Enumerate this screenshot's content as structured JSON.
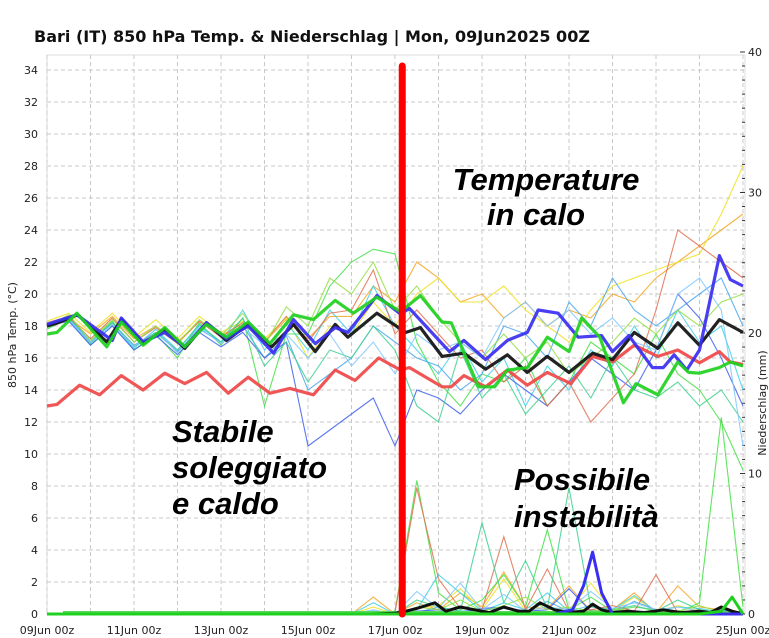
{
  "chart_data": {
    "type": "line",
    "title": "Bari  (IT)  850 hPa Temp. & Niederschlag | Mon, 09Jun2025 00Z",
    "ylabel": "850 hPa Temp. (°C)",
    "y2label": "Niederschlag (mm)",
    "x_unit": "hours since 09Jun 00z",
    "xlim": [
      0,
      384
    ],
    "ylim": [
      0,
      34
    ],
    "y2lim": [
      0,
      40
    ],
    "x_ticks": [
      {
        "t": 0,
        "label": "09Jun 00z"
      },
      {
        "t": 48,
        "label": "11Jun 00z"
      },
      {
        "t": 96,
        "label": "13Jun 00z"
      },
      {
        "t": 144,
        "label": "15Jun 00z"
      },
      {
        "t": 192,
        "label": "17Jun 00z"
      },
      {
        "t": 240,
        "label": "19Jun 00z"
      },
      {
        "t": 288,
        "label": "21Jun 00z"
      },
      {
        "t": 336,
        "label": "23Jun 00z"
      },
      {
        "t": 384,
        "label": "25Jun 00z"
      }
    ],
    "y_ticks": [
      "0",
      "2",
      "4",
      "6",
      "8",
      "10",
      "12",
      "14",
      "16",
      "18",
      "20",
      "22",
      "24",
      "26",
      "28",
      "30",
      "32",
      "34"
    ],
    "y2_ticks": [
      "0",
      "10",
      "20",
      "30",
      "40"
    ],
    "grid": true,
    "member_step_hours": 12,
    "members": [
      {
        "color": "#f5a623",
        "temp": [
          18,
          18.5,
          17.5,
          18.6,
          17.2,
          18,
          17,
          18.3,
          17.4,
          18.2,
          17,
          18.4,
          17.2,
          18.6,
          18.6,
          20.5,
          19.5,
          22,
          21,
          19.5,
          20,
          18.5,
          19.5,
          18,
          19,
          18.5,
          20,
          19.5,
          21,
          22,
          23,
          24,
          25
        ],
        "precip": [
          0,
          0,
          0,
          0,
          0,
          0,
          0,
          0,
          0,
          0,
          0,
          0,
          0,
          0,
          0,
          1.2,
          0,
          0.8,
          0.3,
          1.5,
          0.5,
          3,
          0.5,
          0.4,
          2,
          0.2,
          0.3,
          1.5,
          0.1,
          2,
          0.5,
          0.3,
          0
        ]
      },
      {
        "color": "#f0e020",
        "temp": [
          18.3,
          18.8,
          17.6,
          18.8,
          17.3,
          18.4,
          17.2,
          18.6,
          17.6,
          18.3,
          17.2,
          18.5,
          16,
          18,
          17.5,
          19.5,
          18,
          20,
          21,
          19.5,
          19.5,
          20.5,
          19,
          18,
          17,
          19,
          20.5,
          21,
          21.5,
          22,
          22.5,
          25,
          28
        ],
        "precip": [
          0,
          0,
          0,
          0,
          0,
          0,
          0,
          0,
          0,
          0,
          0,
          0,
          0,
          0,
          0,
          0.5,
          0,
          0.4,
          0.6,
          1.8,
          0.3,
          2.5,
          0.2,
          0.5,
          0.3,
          2.2,
          0.2,
          1.2,
          0.1,
          0.6,
          0.2,
          0.1,
          0
        ]
      },
      {
        "color": "#44e044",
        "temp": [
          17.8,
          18.5,
          17,
          18.3,
          16.5,
          17.5,
          16,
          18.2,
          16.8,
          18.5,
          13,
          17.5,
          17.5,
          20.5,
          22,
          22.8,
          22.5,
          17,
          14.5,
          13,
          15,
          14.5,
          16,
          13,
          14.5,
          17,
          16,
          15,
          17.5,
          15,
          14,
          12,
          9
        ],
        "precip": [
          0,
          0,
          0,
          0,
          0,
          0,
          0,
          0,
          0,
          0,
          0,
          0,
          0,
          0,
          0,
          0,
          0.2,
          9.5,
          1.5,
          0.3,
          1,
          2.8,
          0.5,
          6,
          0.3,
          1.2,
          0.2,
          0.5,
          0.3,
          0.1,
          0.8,
          14,
          0.5
        ]
      },
      {
        "color": "#40d0e8",
        "temp": [
          18,
          18.4,
          16.8,
          18,
          16.6,
          17.8,
          16.5,
          18,
          17,
          19,
          16.5,
          18.2,
          16.5,
          19,
          17.5,
          20.5,
          18,
          16.5,
          15,
          17,
          14.5,
          16,
          13,
          15.5,
          14,
          16.5,
          15.5,
          18,
          16,
          19,
          17,
          18,
          14
        ],
        "precip": [
          0,
          0,
          0,
          0,
          0,
          0,
          0,
          0,
          0,
          0,
          0,
          0,
          0,
          0,
          0,
          0.8,
          0,
          0.3,
          2.8,
          1.5,
          0.2,
          0.8,
          0.3,
          1.5,
          0.2,
          0.6,
          0.3,
          1.3,
          0.2,
          0.5,
          0.4,
          0.1,
          0
        ]
      },
      {
        "color": "#4aa8f0",
        "temp": [
          18.1,
          18.6,
          17,
          18.2,
          16.8,
          17.6,
          16.4,
          17.8,
          17,
          18,
          16,
          17.4,
          14,
          15,
          16,
          18,
          17,
          16,
          15.5,
          14,
          15,
          18,
          17.5,
          16,
          19.5,
          18,
          21,
          19,
          18,
          19,
          20,
          21,
          18
        ],
        "precip": [
          0,
          0,
          0,
          0,
          0,
          0,
          0,
          0,
          0,
          0,
          0,
          0,
          0,
          0,
          0,
          0.2,
          0,
          0.1,
          0.5,
          0.2,
          0.3,
          0.4,
          0.1,
          0.9,
          0.2,
          0.3,
          0.1,
          0.9,
          0.3,
          0.2,
          0.1,
          0.3,
          0
        ]
      },
      {
        "color": "#4060f0",
        "temp": [
          18,
          18.3,
          16.8,
          18,
          16.5,
          17.4,
          16.2,
          17.6,
          16.7,
          17.6,
          16,
          17,
          10.5,
          11.5,
          12.5,
          13.5,
          10.5,
          14,
          13.5,
          12.5,
          14,
          15,
          14,
          13,
          14.5,
          16,
          15,
          14,
          16.5,
          20,
          18.5,
          16,
          13
        ],
        "precip": [
          0,
          0,
          0,
          0,
          0,
          0,
          0,
          0,
          0,
          0,
          0,
          0,
          0,
          0,
          0,
          0,
          0,
          0.2,
          0.3,
          0.1,
          0.4,
          0.5,
          0.2,
          0.3,
          1.8,
          0.2,
          0.1,
          0,
          0.1,
          0,
          0.2,
          0.1,
          0
        ]
      },
      {
        "color": "#e07050",
        "temp": [
          18.2,
          18.6,
          17.2,
          18.5,
          17,
          17.9,
          16.9,
          18.3,
          17.3,
          18.2,
          17,
          18.6,
          17,
          18.8,
          19,
          21.5,
          17.5,
          19,
          17.5,
          16,
          16.5,
          14.5,
          15.5,
          13,
          14.5,
          12,
          13.5,
          15,
          19,
          24,
          23,
          22,
          21
        ],
        "precip": [
          0,
          0,
          0,
          0,
          0,
          0,
          0,
          0,
          0,
          0,
          0,
          0,
          0,
          0,
          0,
          0,
          0.1,
          9,
          2.5,
          0.4,
          0.3,
          5.5,
          0.3,
          3.2,
          0.2,
          0.3,
          0.6,
          0.2,
          2.8,
          0.1,
          0.3,
          0,
          0
        ]
      },
      {
        "color": "#40d090",
        "temp": [
          17.9,
          18.5,
          16.9,
          18.2,
          16.7,
          17.6,
          16.5,
          18.1,
          17,
          18.5,
          15.5,
          17,
          14.5,
          16.5,
          16,
          18,
          16.5,
          13,
          12,
          16.5,
          13.5,
          15,
          12.5,
          14,
          15.5,
          13.5,
          16,
          14,
          13.5,
          14.5,
          13,
          14,
          12
        ],
        "precip": [
          0,
          0,
          0,
          0,
          0,
          0,
          0,
          0,
          0,
          0,
          0,
          0,
          0,
          0,
          0,
          0,
          0,
          1,
          0.5,
          0.2,
          6.5,
          0.8,
          3.8,
          0.4,
          9,
          0.5,
          0.3,
          0.6,
          0.2,
          1,
          0.3,
          0.1,
          0
        ]
      },
      {
        "color": "#90e040",
        "temp": [
          18,
          18.7,
          17.1,
          18.4,
          17,
          18,
          16.9,
          18.4,
          17.4,
          18.8,
          16.8,
          19.2,
          18,
          21,
          20,
          22,
          19,
          20.5,
          18.5,
          17,
          16,
          17.5,
          16,
          17,
          15,
          16,
          17,
          18.5,
          17.5,
          19,
          18,
          19.5,
          20
        ],
        "precip": [
          0,
          0,
          0,
          0,
          0,
          0,
          0,
          0,
          0,
          0,
          0,
          0,
          0,
          0,
          0,
          0,
          0,
          0.5,
          0.3,
          1,
          0.2,
          0.6,
          1.2,
          0.3,
          0.5,
          0.2,
          0.4,
          0.1,
          0.3,
          0.2,
          0.6,
          0.1,
          0
        ]
      },
      {
        "color": "#80c8ff",
        "temp": [
          18.2,
          18.4,
          17,
          18.1,
          16.7,
          17.8,
          16.3,
          17.9,
          16.9,
          17.9,
          16.8,
          17.5,
          16,
          17.5,
          15.5,
          17,
          15,
          17.5,
          16.5,
          17,
          16,
          18.5,
          19.5,
          18,
          19,
          17.5,
          18.5,
          17,
          16.5,
          20,
          21,
          19,
          10.5
        ],
        "precip": [
          0,
          0,
          0,
          0,
          0,
          0,
          0,
          0,
          0,
          0,
          0,
          0,
          0,
          0,
          0,
          0.3,
          0,
          1.6,
          0.4,
          2.2,
          0.3,
          1.4,
          0.2,
          0.5,
          0.3,
          1.6,
          0.4,
          0.8,
          0.3,
          0.5,
          0.2,
          0.2,
          0
        ]
      }
    ],
    "highlighted": [
      {
        "name": "climatology",
        "color": "#f04848",
        "x": [
          0,
          5.5,
          18,
          29,
          41,
          53,
          65,
          76,
          88,
          100,
          111,
          123,
          134,
          147,
          159,
          170,
          183,
          195,
          200,
          218,
          223,
          230,
          242,
          254,
          265,
          276,
          289,
          301,
          312,
          324,
          337,
          348,
          360,
          371,
          377,
          384
        ],
        "temp": [
          13.0,
          13.1,
          14.3,
          13.7,
          14.9,
          14.0,
          15.05,
          14.4,
          15.1,
          13.8,
          14.8,
          13.8,
          14.1,
          13.7,
          15.25,
          14.6,
          16.0,
          15.25,
          15.4,
          14.2,
          14.2,
          14.9,
          14.2,
          15.25,
          14.3,
          15.1,
          14.4,
          16.1,
          15.75,
          16.8,
          16.1,
          16.5,
          15.7,
          16.4,
          15.75,
          15.6
        ]
      },
      {
        "name": "control",
        "color": "#101010",
        "x": [
          0,
          6,
          17,
          33,
          41,
          53,
          65,
          76,
          88,
          99,
          111,
          124,
          136,
          148,
          159,
          166,
          182,
          198,
          206,
          218,
          230,
          242,
          254,
          265,
          276,
          288,
          301,
          312,
          324,
          337,
          348,
          360,
          371,
          384
        ],
        "temp": [
          18.0,
          18.2,
          18.7,
          17.0,
          18.4,
          16.9,
          17.8,
          16.6,
          18.2,
          17.1,
          18.1,
          16.7,
          18.1,
          16.4,
          18.1,
          17.3,
          18.8,
          17.6,
          17.9,
          16.1,
          16.3,
          15.3,
          16.2,
          15.1,
          16.1,
          15.1,
          16.3,
          15.9,
          17.6,
          16.6,
          18.2,
          16.8,
          18.4,
          17.6
        ],
        "precip_x": [
          0,
          180,
          192,
          198,
          204,
          214,
          220,
          228,
          236,
          244,
          252,
          260,
          266,
          272,
          280,
          288,
          296,
          301,
          306,
          312,
          320,
          330,
          340,
          350,
          360,
          366,
          372,
          378,
          384
        ],
        "precip": [
          0,
          0,
          0.05,
          0.2,
          0.4,
          0.8,
          0.2,
          0.5,
          0.3,
          0.1,
          0.5,
          0.2,
          0.2,
          0.8,
          0.3,
          0.1,
          0.2,
          0.7,
          0.3,
          0.1,
          0.2,
          0.1,
          0.3,
          0.1,
          0.2,
          0.1,
          0.5,
          0.2,
          0
        ]
      },
      {
        "name": "operational",
        "color": "#3a2ef0",
        "x": [
          0,
          5.5,
          16.5,
          36,
          41,
          53,
          65,
          76,
          88,
          99,
          111,
          125,
          136,
          148,
          159,
          166,
          182,
          195,
          200,
          211,
          222,
          230,
          242,
          254,
          265,
          271,
          282,
          293,
          306,
          312,
          321,
          334,
          340,
          346,
          353,
          360,
          371,
          377,
          384
        ],
        "temp": [
          18.1,
          18.3,
          18.7,
          17.1,
          18.5,
          17.0,
          17.6,
          16.7,
          18.2,
          17.2,
          18.0,
          16.3,
          18.4,
          16.9,
          17.9,
          17.6,
          19.9,
          18.75,
          19.1,
          17.75,
          16.4,
          17.1,
          15.9,
          17.1,
          17.6,
          19.0,
          18.8,
          17.3,
          17.4,
          16.4,
          17.4,
          15.4,
          15.4,
          16.2,
          15.25,
          16.5,
          22.4,
          20.9,
          20.5
        ],
        "precip_x": [
          0,
          280,
          290,
          296,
          301,
          306,
          312,
          384
        ],
        "precip": [
          0,
          0,
          0.3,
          2,
          4.4,
          1.5,
          0,
          0
        ]
      },
      {
        "name": "ensemble-mean",
        "color": "#20d020",
        "x": [
          0,
          5.5,
          16.5,
          33,
          41,
          53,
          65,
          76,
          88,
          99,
          111,
          123,
          136,
          147,
          159,
          169,
          182,
          195,
          206,
          218,
          223,
          238,
          247,
          254,
          265,
          276,
          288,
          295,
          305,
          318,
          325,
          337,
          348,
          354,
          360,
          371,
          377,
          384
        ],
        "temp": [
          17.5,
          17.6,
          18.8,
          16.7,
          18.25,
          16.8,
          17.9,
          16.7,
          18.1,
          17.3,
          18.25,
          16.9,
          18.7,
          18.4,
          19.6,
          18.8,
          19.8,
          18.9,
          19.9,
          18.25,
          18.2,
          14.2,
          14.2,
          15.25,
          15.4,
          17.3,
          16.4,
          18.5,
          17.3,
          13.2,
          14.4,
          13.7,
          15.75,
          15.1,
          15.05,
          15.4,
          15.75,
          15.5
        ],
        "precip_x": [
          0,
          360,
          372,
          378,
          384
        ],
        "precip": [
          0,
          0,
          0.2,
          1.2,
          0
        ]
      }
    ],
    "marker_line": {
      "t": 196,
      "color": "#ff0000"
    },
    "annotations": [
      {
        "lines": [
          "Temperature",
          "in calo"
        ]
      },
      {
        "lines": [
          "Stabile",
          "soleggiato",
          "e caldo"
        ]
      },
      {
        "lines": [
          "Possibile",
          "instabilità"
        ]
      }
    ]
  }
}
